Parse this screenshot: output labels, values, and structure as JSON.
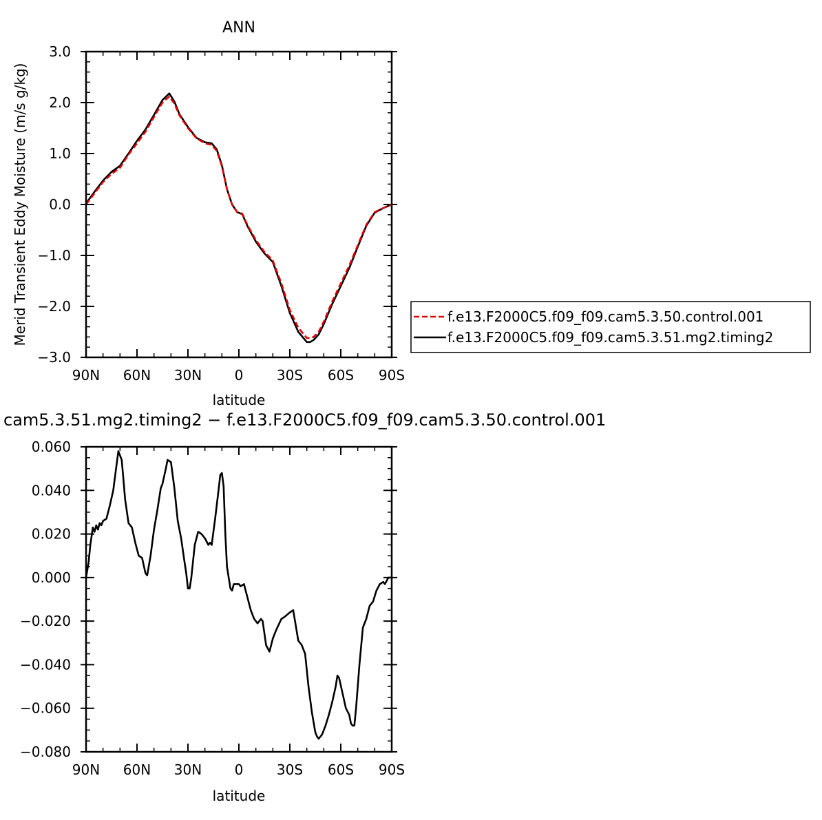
{
  "chart_data": [
    {
      "type": "line",
      "title": "ANN",
      "xlabel": "latitude",
      "ylabel": "Merid Transient Eddy Moisture (m/s g/kg)",
      "xlim": [
        90,
        -90
      ],
      "ylim": [
        -3.0,
        3.0
      ],
      "x_ticks": [
        {
          "value": 90,
          "label": "90N"
        },
        {
          "value": 60,
          "label": "60N"
        },
        {
          "value": 30,
          "label": "30N"
        },
        {
          "value": 0,
          "label": "0"
        },
        {
          "value": -30,
          "label": "30S"
        },
        {
          "value": -60,
          "label": "60S"
        },
        {
          "value": -90,
          "label": "90S"
        }
      ],
      "y_ticks": [
        {
          "value": 3.0,
          "label": "3.0"
        },
        {
          "value": 2.0,
          "label": "2.0"
        },
        {
          "value": 1.0,
          "label": "1.0"
        },
        {
          "value": 0.0,
          "label": "0.0"
        },
        {
          "value": -1.0,
          "label": "−1.0"
        },
        {
          "value": -2.0,
          "label": "−2.0"
        },
        {
          "value": -3.0,
          "label": "−3.0"
        }
      ],
      "legend_position": "right",
      "series": [
        {
          "name": "f.e13.F2000C5.f09_f09.cam5.3.50.control.001",
          "color": "#e00000",
          "dash": "dashed",
          "x": [
            90,
            85,
            80,
            75,
            70,
            65,
            60,
            55,
            50,
            45,
            41,
            38,
            35,
            30,
            25,
            20,
            16,
            13,
            10,
            7,
            4,
            1,
            -2,
            -5,
            -10,
            -15,
            -20,
            -25,
            -30,
            -35,
            -40,
            -42,
            -44,
            -47,
            -50,
            -55,
            -60,
            -65,
            -70,
            -75,
            -80,
            -85,
            -90
          ],
          "y": [
            0.0,
            0.22,
            0.44,
            0.6,
            0.72,
            0.98,
            1.2,
            1.43,
            1.72,
            2.0,
            2.12,
            1.98,
            1.75,
            1.5,
            1.3,
            1.2,
            1.17,
            1.05,
            0.75,
            0.3,
            0.0,
            -0.15,
            -0.18,
            -0.4,
            -0.7,
            -0.93,
            -1.1,
            -1.55,
            -2.07,
            -2.42,
            -2.62,
            -2.62,
            -2.6,
            -2.5,
            -2.3,
            -1.9,
            -1.55,
            -1.2,
            -0.8,
            -0.4,
            -0.15,
            -0.07,
            0.0
          ]
        },
        {
          "name": "f.e13.F2000C5.f09_f09.cam5.3.51.mg2.timing2",
          "color": "#000000",
          "dash": "solid",
          "x": [
            90,
            85,
            80,
            75,
            70,
            65,
            60,
            55,
            50,
            45,
            41,
            38,
            35,
            30,
            25,
            20,
            16,
            13,
            10,
            7,
            4,
            1,
            -2,
            -5,
            -10,
            -15,
            -20,
            -25,
            -30,
            -35,
            -40,
            -42,
            -44,
            -47,
            -50,
            -55,
            -60,
            -65,
            -70,
            -75,
            -80,
            -85,
            -90
          ],
          "y": [
            0.02,
            0.25,
            0.47,
            0.64,
            0.76,
            1.0,
            1.25,
            1.47,
            1.76,
            2.05,
            2.18,
            2.02,
            1.77,
            1.52,
            1.31,
            1.22,
            1.2,
            1.08,
            0.77,
            0.3,
            0.0,
            -0.15,
            -0.19,
            -0.42,
            -0.73,
            -0.96,
            -1.13,
            -1.6,
            -2.13,
            -2.5,
            -2.7,
            -2.7,
            -2.66,
            -2.55,
            -2.35,
            -1.95,
            -1.6,
            -1.25,
            -0.83,
            -0.42,
            -0.16,
            -0.07,
            0.0
          ]
        }
      ]
    },
    {
      "type": "line",
      "title": "cam5.3.51.mg2.timing2 − f.e13.F2000C5.f09_f09.cam5.3.50.control.001",
      "xlabel": "latitude",
      "ylabel": "",
      "xlim": [
        90,
        -90
      ],
      "ylim": [
        -0.08,
        0.06
      ],
      "x_ticks": [
        {
          "value": 90,
          "label": "90N"
        },
        {
          "value": 60,
          "label": "60N"
        },
        {
          "value": 30,
          "label": "30N"
        },
        {
          "value": 0,
          "label": "0"
        },
        {
          "value": -30,
          "label": "30S"
        },
        {
          "value": -60,
          "label": "60S"
        },
        {
          "value": -90,
          "label": "90S"
        }
      ],
      "y_ticks": [
        {
          "value": 0.06,
          "label": "0.060"
        },
        {
          "value": 0.04,
          "label": "0.040"
        },
        {
          "value": 0.02,
          "label": "0.020"
        },
        {
          "value": 0.0,
          "label": "0.000"
        },
        {
          "value": -0.02,
          "label": "−0.020"
        },
        {
          "value": -0.04,
          "label": "−0.040"
        },
        {
          "value": -0.06,
          "label": "−0.060"
        },
        {
          "value": -0.08,
          "label": "−0.080"
        }
      ],
      "series": [
        {
          "color": "#000000",
          "dash": "solid",
          "x": [
            90,
            88.5,
            87.5,
            86,
            85,
            84,
            83,
            82,
            81,
            80,
            78,
            76,
            74,
            72,
            71,
            69,
            68,
            67,
            65,
            63,
            61,
            59,
            57,
            55,
            54,
            52,
            50,
            48,
            46,
            45,
            43,
            42,
            40,
            38,
            36,
            34,
            32,
            31,
            30,
            29,
            28,
            26,
            24,
            22,
            20,
            18,
            17,
            16,
            14,
            12,
            11,
            10,
            9,
            8,
            7,
            6,
            5,
            4,
            3,
            2,
            0,
            -1,
            -3,
            -5,
            -7,
            -9,
            -11,
            -13,
            -14,
            -16,
            -18,
            -20,
            -22,
            -25,
            -27,
            -30,
            -32,
            -35,
            -37,
            -39,
            -41,
            -43,
            -45,
            -46,
            -47,
            -49,
            -51,
            -53,
            -55,
            -57,
            -58,
            -59,
            -61,
            -63,
            -65,
            -66,
            -67,
            -68,
            -69,
            -71,
            -73,
            -75,
            -77,
            -79,
            -81,
            -83,
            -85,
            -86,
            -88,
            -90
          ],
          "y": [
            0.0,
            0.007,
            0.015,
            0.023,
            0.021,
            0.024,
            0.022,
            0.025,
            0.024,
            0.026,
            0.027,
            0.033,
            0.04,
            0.052,
            0.058,
            0.054,
            0.045,
            0.036,
            0.025,
            0.023,
            0.016,
            0.01,
            0.009,
            0.002,
            0.001,
            0.01,
            0.022,
            0.031,
            0.041,
            0.043,
            0.05,
            0.054,
            0.053,
            0.041,
            0.026,
            0.018,
            0.007,
            0.002,
            -0.005,
            -0.005,
            0.0,
            0.015,
            0.021,
            0.02,
            0.018,
            0.015,
            0.016,
            0.015,
            0.027,
            0.04,
            0.047,
            0.048,
            0.042,
            0.02,
            0.005,
            0.0,
            -0.005,
            -0.006,
            -0.003,
            -0.003,
            -0.003,
            -0.004,
            -0.003,
            -0.009,
            -0.015,
            -0.019,
            -0.021,
            -0.019,
            -0.02,
            -0.031,
            -0.034,
            -0.028,
            -0.024,
            -0.019,
            -0.018,
            -0.016,
            -0.015,
            -0.029,
            -0.031,
            -0.035,
            -0.05,
            -0.062,
            -0.071,
            -0.073,
            -0.074,
            -0.072,
            -0.068,
            -0.063,
            -0.057,
            -0.05,
            -0.045,
            -0.046,
            -0.053,
            -0.06,
            -0.063,
            -0.067,
            -0.068,
            -0.068,
            -0.06,
            -0.04,
            -0.023,
            -0.019,
            -0.013,
            -0.011,
            -0.006,
            -0.003,
            -0.002,
            -0.003,
            0.0,
            0.0
          ]
        }
      ]
    }
  ]
}
